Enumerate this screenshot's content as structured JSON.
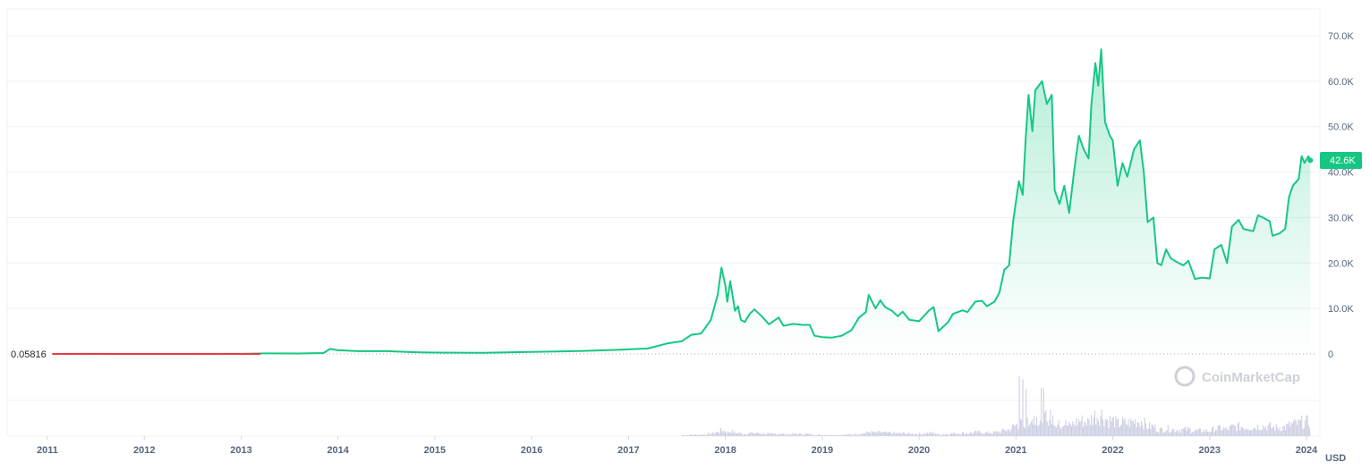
{
  "chart_data": {
    "type": "area",
    "currency_label": "USD",
    "baseline_label": "0.05816",
    "current_price_label": "42.6K",
    "watermark": "CoinMarketCap",
    "y_ticks": [
      {
        "value": 0,
        "label": "0"
      },
      {
        "value": 10000,
        "label": "10.0K"
      },
      {
        "value": 20000,
        "label": "20.0K"
      },
      {
        "value": 30000,
        "label": "30.0K"
      },
      {
        "value": 40000,
        "label": "40.0K"
      },
      {
        "value": 50000,
        "label": "50.0K"
      },
      {
        "value": 60000,
        "label": "60.0K"
      },
      {
        "value": 70000,
        "label": "70.0K"
      }
    ],
    "ylim": [
      0,
      75000
    ],
    "xlim": [
      2011.0,
      2024.05
    ],
    "x_ticks": [
      {
        "value": 2011,
        "label": "2011"
      },
      {
        "value": 2012,
        "label": "2012"
      },
      {
        "value": 2013,
        "label": "2013"
      },
      {
        "value": 2014,
        "label": "2014"
      },
      {
        "value": 2015,
        "label": "2015"
      },
      {
        "value": 2016,
        "label": "2016"
      },
      {
        "value": 2017,
        "label": "2017"
      },
      {
        "value": 2018,
        "label": "2018"
      },
      {
        "value": 2019,
        "label": "2019"
      },
      {
        "value": 2020,
        "label": "2020"
      },
      {
        "value": 2021,
        "label": "2021"
      },
      {
        "value": 2022,
        "label": "2022"
      },
      {
        "value": 2023,
        "label": "2023"
      },
      {
        "value": 2024,
        "label": "2024"
      }
    ],
    "colors": {
      "line": "#16c784",
      "below_line": "#ea3943",
      "badge": "#16c784",
      "grid": "#eff2f5",
      "volume": "#c9cbe2"
    },
    "series": [
      {
        "points": [
          [
            2011.05,
            0.3
          ],
          [
            2011.45,
            15
          ],
          [
            2011.9,
            3
          ],
          [
            2012.5,
            8
          ],
          [
            2013.0,
            15
          ],
          [
            2013.25,
            120
          ],
          [
            2013.6,
            100
          ],
          [
            2013.85,
            200
          ],
          [
            2013.92,
            1100
          ],
          [
            2014.0,
            800
          ],
          [
            2014.2,
            600
          ],
          [
            2014.5,
            600
          ],
          [
            2014.8,
            380
          ],
          [
            2015.0,
            300
          ],
          [
            2015.5,
            250
          ],
          [
            2016.0,
            430
          ],
          [
            2016.5,
            650
          ],
          [
            2016.9,
            900
          ],
          [
            2017.2,
            1200
          ],
          [
            2017.4,
            2300
          ],
          [
            2017.55,
            2800
          ],
          [
            2017.65,
            4200
          ],
          [
            2017.75,
            4500
          ],
          [
            2017.85,
            7500
          ],
          [
            2017.92,
            13000
          ],
          [
            2017.96,
            19000
          ],
          [
            2018.0,
            15000
          ],
          [
            2018.02,
            11500
          ],
          [
            2018.05,
            16000
          ],
          [
            2018.1,
            9500
          ],
          [
            2018.13,
            10500
          ],
          [
            2018.16,
            7500
          ],
          [
            2018.2,
            7000
          ],
          [
            2018.25,
            8800
          ],
          [
            2018.3,
            9800
          ],
          [
            2018.38,
            8200
          ],
          [
            2018.45,
            6500
          ],
          [
            2018.55,
            8000
          ],
          [
            2018.6,
            6200
          ],
          [
            2018.7,
            6600
          ],
          [
            2018.8,
            6400
          ],
          [
            2018.87,
            6400
          ],
          [
            2018.92,
            4000
          ],
          [
            2019.0,
            3700
          ],
          [
            2019.1,
            3600
          ],
          [
            2019.2,
            4000
          ],
          [
            2019.3,
            5200
          ],
          [
            2019.38,
            8000
          ],
          [
            2019.45,
            9200
          ],
          [
            2019.48,
            13000
          ],
          [
            2019.55,
            10000
          ],
          [
            2019.6,
            11800
          ],
          [
            2019.65,
            10300
          ],
          [
            2019.72,
            9500
          ],
          [
            2019.78,
            8300
          ],
          [
            2019.83,
            9300
          ],
          [
            2019.9,
            7500
          ],
          [
            2020.0,
            7200
          ],
          [
            2020.1,
            9500
          ],
          [
            2020.15,
            10300
          ],
          [
            2020.2,
            5000
          ],
          [
            2020.3,
            7000
          ],
          [
            2020.35,
            8800
          ],
          [
            2020.45,
            9600
          ],
          [
            2020.5,
            9200
          ],
          [
            2020.58,
            11500
          ],
          [
            2020.65,
            11700
          ],
          [
            2020.7,
            10500
          ],
          [
            2020.78,
            11500
          ],
          [
            2020.83,
            13500
          ],
          [
            2020.88,
            18500
          ],
          [
            2020.93,
            19500
          ],
          [
            2020.97,
            29000
          ],
          [
            2021.03,
            38000
          ],
          [
            2021.07,
            35000
          ],
          [
            2021.1,
            47000
          ],
          [
            2021.13,
            57000
          ],
          [
            2021.17,
            49000
          ],
          [
            2021.2,
            58000
          ],
          [
            2021.27,
            60000
          ],
          [
            2021.32,
            55000
          ],
          [
            2021.37,
            57000
          ],
          [
            2021.4,
            36000
          ],
          [
            2021.45,
            33000
          ],
          [
            2021.5,
            37000
          ],
          [
            2021.55,
            31000
          ],
          [
            2021.6,
            40000
          ],
          [
            2021.65,
            48000
          ],
          [
            2021.7,
            45000
          ],
          [
            2021.75,
            43000
          ],
          [
            2021.78,
            55000
          ],
          [
            2021.82,
            64000
          ],
          [
            2021.85,
            59000
          ],
          [
            2021.88,
            67000
          ],
          [
            2021.92,
            51000
          ],
          [
            2021.97,
            48000
          ],
          [
            2022.0,
            47000
          ],
          [
            2022.05,
            37000
          ],
          [
            2022.1,
            42000
          ],
          [
            2022.15,
            39000
          ],
          [
            2022.22,
            45000
          ],
          [
            2022.28,
            47000
          ],
          [
            2022.32,
            40000
          ],
          [
            2022.36,
            29000
          ],
          [
            2022.42,
            30000
          ],
          [
            2022.46,
            20000
          ],
          [
            2022.5,
            19500
          ],
          [
            2022.55,
            23000
          ],
          [
            2022.6,
            21000
          ],
          [
            2022.68,
            20000
          ],
          [
            2022.73,
            19500
          ],
          [
            2022.78,
            20500
          ],
          [
            2022.85,
            16500
          ],
          [
            2022.92,
            16800
          ],
          [
            2023.0,
            16600
          ],
          [
            2023.05,
            23000
          ],
          [
            2023.12,
            24000
          ],
          [
            2023.18,
            20000
          ],
          [
            2023.23,
            28000
          ],
          [
            2023.3,
            29500
          ],
          [
            2023.35,
            27500
          ],
          [
            2023.45,
            27000
          ],
          [
            2023.5,
            30500
          ],
          [
            2023.55,
            30000
          ],
          [
            2023.62,
            29200
          ],
          [
            2023.65,
            26000
          ],
          [
            2023.72,
            26500
          ],
          [
            2023.78,
            27500
          ],
          [
            2023.82,
            34500
          ],
          [
            2023.86,
            37000
          ],
          [
            2023.92,
            38500
          ],
          [
            2023.95,
            43500
          ],
          [
            2023.98,
            42000
          ],
          [
            2024.02,
            43500
          ],
          [
            2024.04,
            42600
          ]
        ]
      }
    ]
  }
}
